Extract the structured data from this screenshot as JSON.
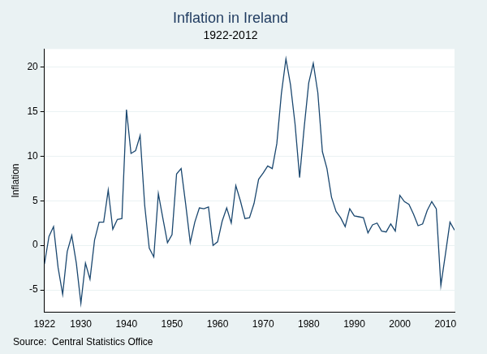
{
  "chart_data": {
    "type": "line",
    "title": "Inflation in Ireland",
    "subtitle": "1922-2012",
    "y_label": "Inflation",
    "note": "Source:  Central Statistics Office",
    "x": [
      1922,
      1923,
      1924,
      1925,
      1926,
      1927,
      1928,
      1929,
      1930,
      1931,
      1932,
      1933,
      1934,
      1935,
      1936,
      1937,
      1938,
      1939,
      1940,
      1941,
      1942,
      1943,
      1944,
      1945,
      1946,
      1947,
      1948,
      1949,
      1950,
      1951,
      1952,
      1953,
      1954,
      1955,
      1956,
      1957,
      1958,
      1959,
      1960,
      1961,
      1962,
      1963,
      1964,
      1965,
      1966,
      1967,
      1968,
      1969,
      1970,
      1971,
      1972,
      1973,
      1974,
      1975,
      1976,
      1977,
      1978,
      1979,
      1980,
      1981,
      1982,
      1983,
      1984,
      1985,
      1986,
      1987,
      1988,
      1989,
      1990,
      1991,
      1992,
      1993,
      1994,
      1995,
      1996,
      1997,
      1998,
      1999,
      2000,
      2001,
      2002,
      2003,
      2004,
      2005,
      2006,
      2007,
      2008,
      2009,
      2010,
      2011,
      2012
    ],
    "values": [
      -2.1,
      1.0,
      2.1,
      -2.5,
      -5.5,
      -0.7,
      1.1,
      -2.0,
      -6.5,
      -2.0,
      -3.8,
      0.6,
      2.6,
      2.6,
      6.2,
      1.8,
      2.9,
      3.0,
      15.2,
      10.3,
      10.6,
      12.3,
      4.5,
      -0.3,
      -1.3,
      5.8,
      3.0,
      0.3,
      1.2,
      8.0,
      8.6,
      4.6,
      0.3,
      2.6,
      4.2,
      4.1,
      4.3,
      0.0,
      0.4,
      2.7,
      4.2,
      2.5,
      6.7,
      5.0,
      3.0,
      3.1,
      4.7,
      7.4,
      8.1,
      8.9,
      8.6,
      11.4,
      17.0,
      20.9,
      18.0,
      13.6,
      7.6,
      13.2,
      18.2,
      20.4,
      17.1,
      10.5,
      8.6,
      5.4,
      3.8,
      3.1,
      2.1,
      4.1,
      3.3,
      3.2,
      3.1,
      1.4,
      2.3,
      2.5,
      1.6,
      1.5,
      2.4,
      1.6,
      5.6,
      4.9,
      4.6,
      3.5,
      2.2,
      2.4,
      3.9,
      4.9,
      4.1,
      -4.5,
      -1.0,
      2.6,
      1.7
    ],
    "color": "#1a476f",
    "xlim": [
      1922,
      2012
    ],
    "xticks": [
      1922,
      1930,
      1940,
      1950,
      1960,
      1970,
      1980,
      1990,
      2000,
      2010
    ],
    "ylim": [
      -7.5,
      22
    ],
    "yticks": [
      -5,
      0,
      5,
      10,
      15,
      20
    ],
    "grid": true
  }
}
